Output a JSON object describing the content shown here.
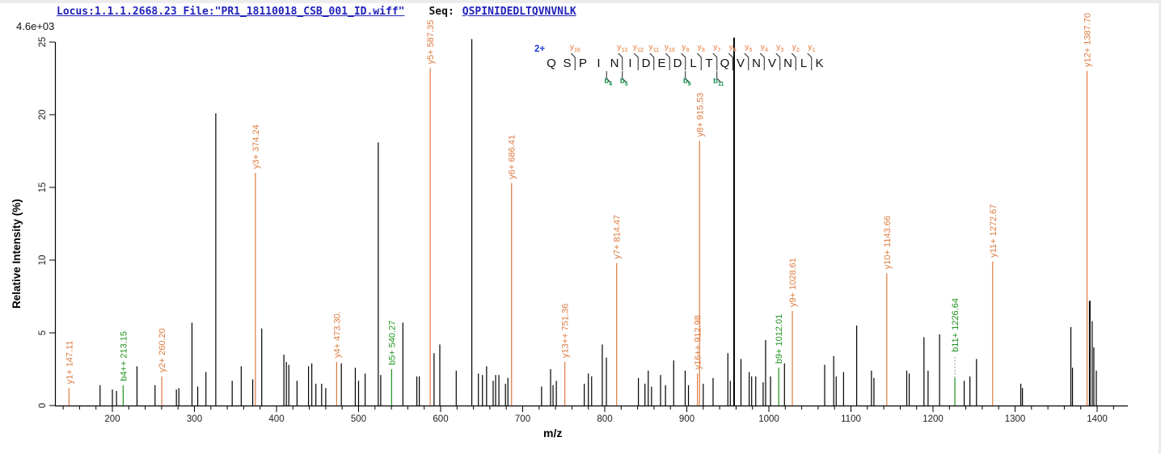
{
  "header": {
    "locus_file": "Locus:1.1.1.2668.23 File:\"PR1_18110018_CSB_001_ID.wiff\"",
    "seq_label": "Seq:",
    "sequence": "QSPINIDEDLTQVNVNLK"
  },
  "colors": {
    "y_ion": "#dd7b3f",
    "b_ion": "#1d941d",
    "overlay_y_label": "#ef9c6a",
    "overlay_b_label": "#12914d",
    "peak_black": "#000000",
    "header_blue": "#2222bb",
    "charge_blue": "#1f3fcc"
  },
  "chart_data": {
    "type": "bar",
    "subtype": "MS/MS centroid spectrum",
    "xlabel": "m/z",
    "ylabel": "Relative  Intensity (%)",
    "intensity_scale_label": "4.6e+03",
    "xlim": [
      130,
      1437
    ],
    "ylim": [
      0,
      25
    ],
    "grid": false,
    "x_major_ticks": [
      200,
      300,
      400,
      500,
      600,
      700,
      800,
      900,
      1000,
      1100,
      1200,
      1300,
      1400
    ],
    "x_minor_ticks": {
      "start": 140,
      "end": 1420,
      "step": 20
    },
    "y_ticks": [
      0,
      5,
      10,
      15,
      20,
      25
    ],
    "precursor": {
      "charge_label": "2+"
    },
    "fragmentation": {
      "sequence": "QSPINIDEDLTQVNVNLK",
      "y_ions": [
        {
          "label": "y16",
          "gap": 2
        },
        {
          "label": "y13",
          "gap": 5
        },
        {
          "label": "y12",
          "gap": 6
        },
        {
          "label": "y11",
          "gap": 7
        },
        {
          "label": "y10",
          "gap": 8
        },
        {
          "label": "y9",
          "gap": 9
        },
        {
          "label": "y8",
          "gap": 10
        },
        {
          "label": "y7",
          "gap": 11
        },
        {
          "label": "y6",
          "gap": 12
        },
        {
          "label": "y5",
          "gap": 13
        },
        {
          "label": "y4",
          "gap": 14
        },
        {
          "label": "y3",
          "gap": 15
        },
        {
          "label": "y2",
          "gap": 16
        },
        {
          "label": "y1",
          "gap": 17
        }
      ],
      "b_ions": [
        {
          "label": "b4",
          "gap": 4
        },
        {
          "label": "b5",
          "gap": 5
        },
        {
          "label": "b9",
          "gap": 9
        },
        {
          "label": "b11",
          "gap": 11
        }
      ]
    },
    "annotated_peaks": [
      {
        "label": "y1+ 147.11",
        "mz": 147.11,
        "intensity": 1.2,
        "type": "y"
      },
      {
        "label": "b4++ 213.15",
        "mz": 213.15,
        "intensity": 1.4,
        "type": "b"
      },
      {
        "label": "y2+ 260.20",
        "mz": 260.2,
        "intensity": 2.0,
        "type": "y"
      },
      {
        "label": "y3+ 374.24",
        "mz": 374.24,
        "intensity": 16.0,
        "type": "y"
      },
      {
        "label": "y4+ 473.30.",
        "mz": 473.3,
        "intensity": 3.0,
        "type": "y"
      },
      {
        "label": "b5+ 540.27",
        "mz": 540.27,
        "intensity": 2.5,
        "type": "b"
      },
      {
        "label": "y5+ 587.35",
        "mz": 587.35,
        "intensity": 23.2,
        "type": "y"
      },
      {
        "label": "y6+ 686.41",
        "mz": 686.41,
        "intensity": 15.3,
        "type": "y"
      },
      {
        "label": "y13++ 751.36",
        "mz": 751.36,
        "intensity": 3.0,
        "type": "y"
      },
      {
        "label": "y7+ 814.47",
        "mz": 814.47,
        "intensity": 9.8,
        "type": "y"
      },
      {
        "label": "y16++ 912.98",
        "mz": 912.98,
        "intensity": 2.2,
        "type": "y"
      },
      {
        "label": "y8+ 915.53",
        "mz": 915.53,
        "intensity": 18.2,
        "type": "y"
      },
      {
        "label": "b9+ 1012.01",
        "mz": 1012.01,
        "intensity": 2.6,
        "type": "b"
      },
      {
        "label": "y9+ 1028.61",
        "mz": 1028.61,
        "intensity": 6.5,
        "type": "y"
      },
      {
        "label": "y10+ 1143.66",
        "mz": 1143.66,
        "intensity": 9.1,
        "type": "y"
      },
      {
        "label": "b11+ 1226.64",
        "mz": 1226.64,
        "intensity": 1.9,
        "type": "b",
        "label_lift_pct": 1.5
      },
      {
        "label": "y11+ 1272.67",
        "mz": 1272.67,
        "intensity": 9.9,
        "type": "y"
      },
      {
        "label": "y12+ 1387.70",
        "mz": 1387.7,
        "intensity": 23.0,
        "type": "y"
      }
    ],
    "unlabeled_peaks": [
      [
        185,
        1.4
      ],
      [
        200,
        1.1
      ],
      [
        205,
        1.0
      ],
      [
        230,
        2.7
      ],
      [
        252,
        1.4
      ],
      [
        278,
        1.1
      ],
      [
        281,
        1.2
      ],
      [
        297,
        5.7
      ],
      [
        304,
        1.3
      ],
      [
        314,
        2.3
      ],
      [
        326,
        20.1
      ],
      [
        346,
        1.7
      ],
      [
        357,
        2.7
      ],
      [
        371,
        1.8
      ],
      [
        382,
        5.3
      ],
      [
        409,
        3.5
      ],
      [
        412,
        3.0
      ],
      [
        415,
        2.8
      ],
      [
        425,
        1.7
      ],
      [
        439,
        2.7
      ],
      [
        443,
        2.9
      ],
      [
        448,
        1.5
      ],
      [
        455,
        1.5
      ],
      [
        460,
        1.2
      ],
      [
        479,
        2.9
      ],
      [
        496,
        2.6
      ],
      [
        500,
        1.7
      ],
      [
        508,
        2.2
      ],
      [
        524,
        18.1
      ],
      [
        527,
        2.1
      ],
      [
        554,
        5.7
      ],
      [
        571,
        2.0
      ],
      [
        574,
        2.0
      ],
      [
        592,
        3.6
      ],
      [
        599,
        4.2
      ],
      [
        619,
        2.4
      ],
      [
        638,
        25.2
      ],
      [
        646,
        2.2
      ],
      [
        651,
        2.1
      ],
      [
        656,
        2.7
      ],
      [
        664,
        1.7
      ],
      [
        667,
        2.1
      ],
      [
        671,
        2.1
      ],
      [
        679,
        1.5
      ],
      [
        682,
        1.9
      ],
      [
        723,
        1.3
      ],
      [
        734,
        2.5
      ],
      [
        737,
        1.4
      ],
      [
        741,
        1.7
      ],
      [
        775,
        1.5
      ],
      [
        780,
        2.2
      ],
      [
        784,
        2.0
      ],
      [
        797,
        4.2
      ],
      [
        802,
        3.3
      ],
      [
        841,
        1.9
      ],
      [
        849,
        1.5
      ],
      [
        853,
        2.4
      ],
      [
        857,
        1.3
      ],
      [
        868,
        2.1
      ],
      [
        874,
        1.4
      ],
      [
        884,
        3.1
      ],
      [
        898,
        2.4
      ],
      [
        902,
        1.4
      ],
      [
        920,
        1.5
      ],
      [
        932,
        1.9
      ],
      [
        950,
        3.6
      ],
      [
        953,
        1.7
      ],
      [
        957.6,
        25.3,
        2
      ],
      [
        966,
        3.2
      ],
      [
        976,
        2.3
      ],
      [
        979,
        2.0
      ],
      [
        984,
        2.0
      ],
      [
        993,
        1.6
      ],
      [
        996,
        4.5
      ],
      [
        1002,
        2.0
      ],
      [
        1019,
        2.9
      ],
      [
        1068,
        2.8
      ],
      [
        1079,
        3.4
      ],
      [
        1082,
        2.0
      ],
      [
        1091,
        2.3
      ],
      [
        1107,
        5.5
      ],
      [
        1125,
        2.4
      ],
      [
        1128,
        1.9
      ],
      [
        1168,
        2.4
      ],
      [
        1171,
        2.2
      ],
      [
        1189,
        4.7
      ],
      [
        1194,
        2.4
      ],
      [
        1208,
        4.9
      ],
      [
        1238,
        1.7
      ],
      [
        1245,
        2.0
      ],
      [
        1253,
        3.2
      ],
      [
        1307,
        1.5
      ],
      [
        1309,
        1.2
      ],
      [
        1368,
        5.4
      ],
      [
        1370,
        2.6
      ],
      [
        1391,
        7.2,
        2
      ],
      [
        1394,
        5.8
      ],
      [
        1396,
        4.0
      ],
      [
        1399,
        2.4
      ]
    ]
  }
}
